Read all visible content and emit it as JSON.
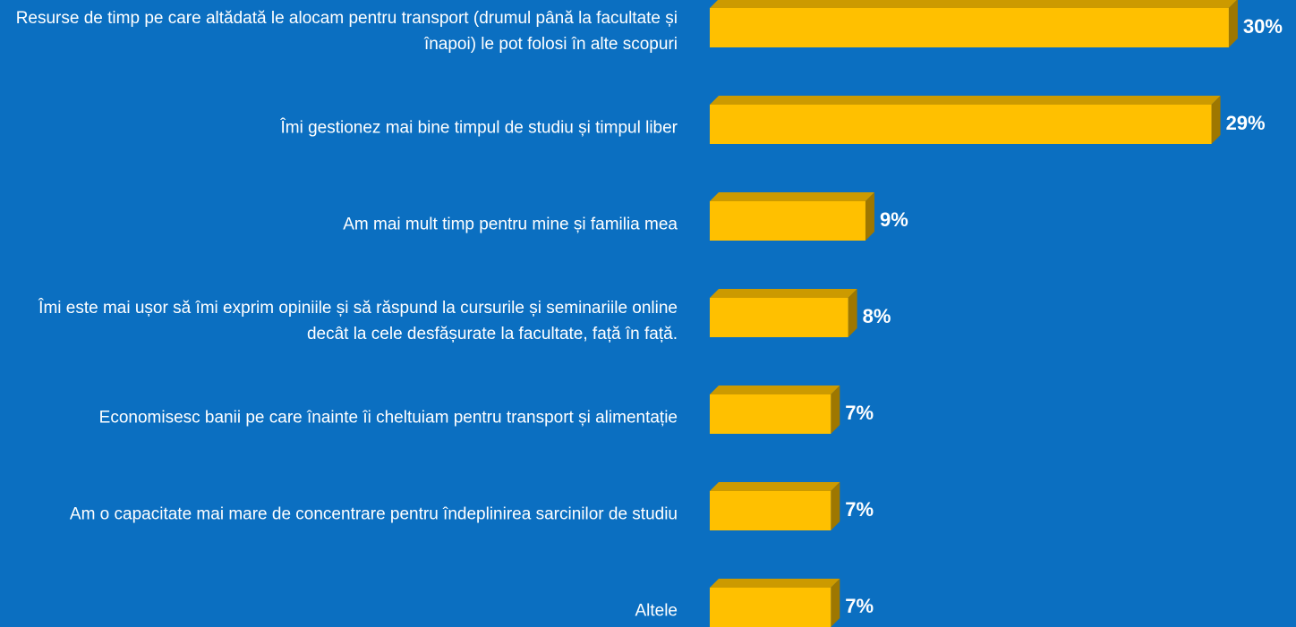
{
  "chart_data": {
    "type": "bar3d-horizontal",
    "categories": [
      "Resurse de timp pe care altădată le alocam pentru transport (drumul până la facultate și înapoi) le pot folosi în alte scopuri",
      "Îmi gestionez mai bine timpul de studiu și timpul liber",
      "Am mai mult timp pentru mine și familia mea",
      "Îmi este mai ușor să îmi exprim opiniile și să răspund la cursurile și seminariile online decât la cele desfășurate la facultate, față în față.",
      "Economisesc banii pe care înainte îi cheltuiam pentru transport și alimentație",
      "Am o capacitate mai mare de concentrare pentru îndeplinirea sarcinilor de studiu",
      "Altele"
    ],
    "values": [
      30,
      29,
      9,
      8,
      7,
      7,
      7
    ],
    "value_labels": [
      "30%",
      "29%",
      "9%",
      "8%",
      "7%",
      "7%",
      "7%"
    ],
    "color": "#ffc000"
  }
}
